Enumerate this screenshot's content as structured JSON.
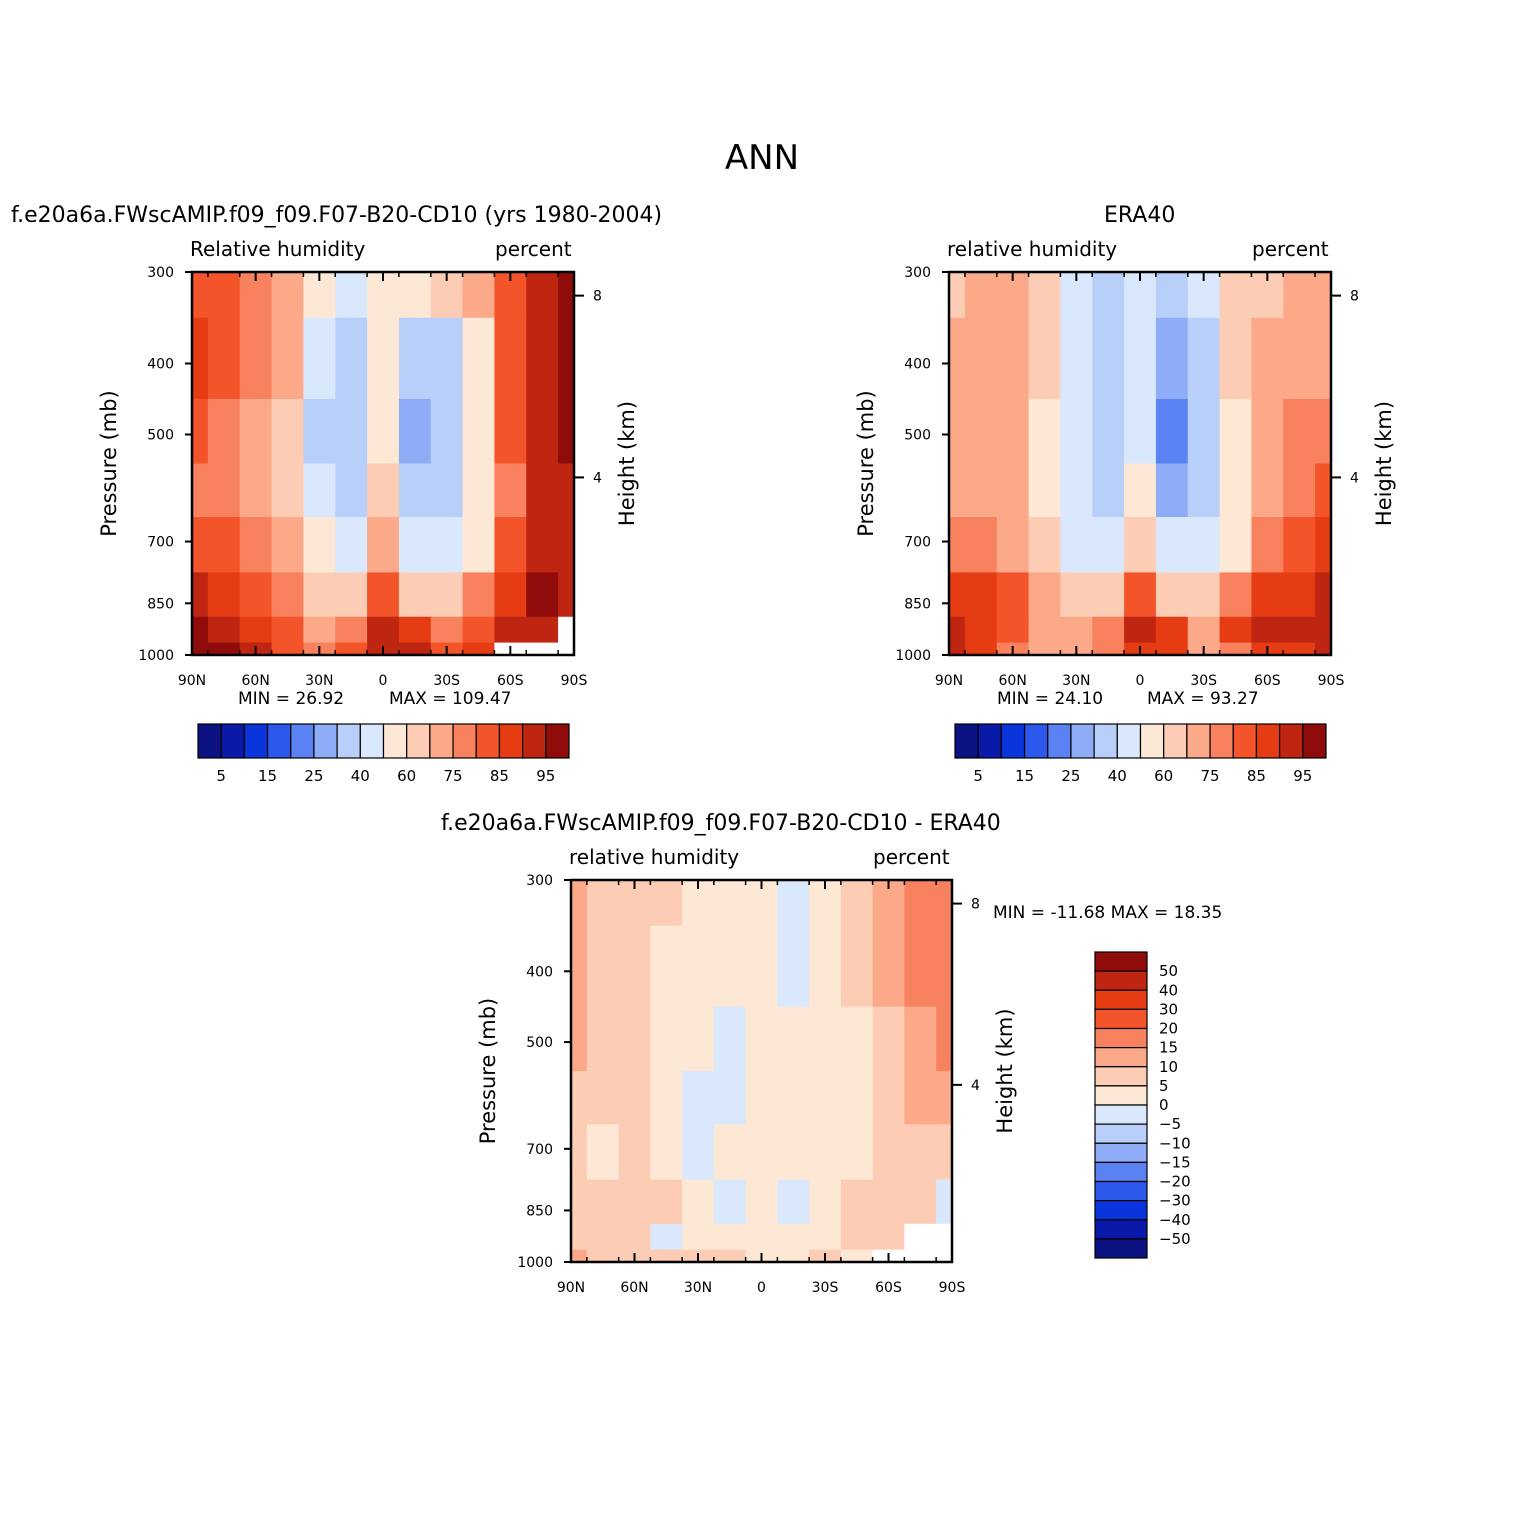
{
  "figure": {
    "title": "ANN"
  },
  "panels": [
    {
      "title": "f.e20a6a.FWscAMIP.f09_f09.F07-B20-CD10 (yrs 1980-2004)",
      "left_label": "Relative humidity",
      "right_label": "percent",
      "ylabel": "Pressure (mb)",
      "ylabel_right": "Height (km)",
      "min_text": "MIN =   26.92",
      "max_text": "MAX =  109.47"
    },
    {
      "title": "ERA40",
      "left_label": "relative humidity",
      "right_label": "percent",
      "ylabel": "Pressure (mb)",
      "ylabel_right": "Height (km)",
      "min_text": "MIN =   24.10",
      "max_text": "MAX =   93.27"
    },
    {
      "title": "f.e20a6a.FWscAMIP.f09_f09.F07-B20-CD10 - ERA40",
      "left_label": "relative humidity",
      "right_label": "percent",
      "ylabel": "Pressure (mb)",
      "ylabel_right": "Height (km)",
      "minmax_text": "MIN = -11.68   MAX =   18.35"
    }
  ],
  "chart_data": [
    {
      "type": "heatmap",
      "title": "f.e20a6a.FWscAMIP.f09_f09.F07-B20-CD10 (yrs 1980-2004)",
      "variable": "Relative humidity",
      "units": "percent",
      "xlabel": "",
      "ylabel": "Pressure (mb)",
      "ylabel_right": "Height (km)",
      "x_ticks": [
        "90N",
        "60N",
        "30N",
        "0",
        "30S",
        "60S",
        "90S"
      ],
      "y_ticks": [
        300,
        400,
        500,
        700,
        850,
        1000
      ],
      "y_ticks_right": [
        8,
        4
      ],
      "y_scale": "log",
      "ylim": [
        1000,
        300
      ],
      "min": 26.92,
      "max": 109.47,
      "legend_levels": [
        5,
        10,
        15,
        20,
        25,
        30,
        40,
        50,
        60,
        65,
        70,
        75,
        80,
        85,
        90,
        95
      ],
      "legend_labels": [
        "5",
        "15",
        "25",
        "40",
        "60",
        "75",
        "85",
        "95"
      ],
      "legend_orientation": "horizontal",
      "lat": [
        90,
        75,
        60,
        45,
        30,
        15,
        0,
        -15,
        -30,
        -45,
        -60,
        -75,
        -90
      ],
      "levels_mb": [
        300,
        400,
        500,
        600,
        700,
        850,
        925,
        1000
      ],
      "values": [
        [
          75,
          75,
          70,
          65,
          55,
          45,
          55,
          50,
          60,
          65,
          75,
          85,
          90
        ],
        [
          80,
          75,
          70,
          65,
          40,
          30,
          50,
          30,
          35,
          55,
          75,
          85,
          90
        ],
        [
          75,
          72,
          68,
          60,
          38,
          30,
          55,
          25,
          30,
          55,
          75,
          85,
          90
        ],
        [
          72,
          70,
          68,
          60,
          40,
          35,
          62,
          30,
          35,
          50,
          72,
          85,
          88
        ],
        [
          78,
          75,
          72,
          65,
          50,
          40,
          65,
          40,
          40,
          55,
          75,
          85,
          85
        ],
        [
          85,
          82,
          78,
          70,
          60,
          60,
          75,
          62,
          60,
          70,
          82,
          90,
          85
        ],
        [
          90,
          88,
          82,
          75,
          65,
          70,
          88,
          80,
          70,
          78,
          85,
          88,
          null
        ],
        [
          98,
          95,
          85,
          75,
          70,
          75,
          88,
          85,
          78,
          80,
          null,
          null,
          null
        ]
      ]
    },
    {
      "type": "heatmap",
      "title": "ERA40",
      "variable": "relative humidity",
      "units": "percent",
      "xlabel": "",
      "ylabel": "Pressure (mb)",
      "ylabel_right": "Height (km)",
      "x_ticks": [
        "90N",
        "60N",
        "30N",
        "0",
        "30S",
        "60S",
        "90S"
      ],
      "y_ticks": [
        300,
        400,
        500,
        700,
        850,
        1000
      ],
      "y_ticks_right": [
        8,
        4
      ],
      "y_scale": "log",
      "ylim": [
        1000,
        300
      ],
      "min": 24.1,
      "max": 93.27,
      "legend_levels": [
        5,
        10,
        15,
        20,
        25,
        30,
        40,
        50,
        60,
        65,
        70,
        75,
        80,
        85,
        90,
        95
      ],
      "legend_labels": [
        "5",
        "15",
        "25",
        "40",
        "60",
        "75",
        "85",
        "95"
      ],
      "legend_orientation": "horizontal",
      "lat": [
        90,
        75,
        60,
        45,
        30,
        15,
        0,
        -15,
        -30,
        -45,
        -60,
        -75,
        -90
      ],
      "levels_mb": [
        300,
        400,
        500,
        600,
        700,
        850,
        925,
        1000
      ],
      "values": [
        [
          60,
          65,
          65,
          60,
          45,
          35,
          45,
          35,
          45,
          60,
          60,
          65,
          65
        ],
        [
          65,
          65,
          65,
          60,
          40,
          30,
          42,
          25,
          35,
          60,
          65,
          65,
          65
        ],
        [
          65,
          65,
          65,
          58,
          40,
          30,
          45,
          20,
          30,
          55,
          65,
          70,
          70
        ],
        [
          65,
          68,
          65,
          58,
          42,
          35,
          55,
          28,
          35,
          55,
          65,
          72,
          75
        ],
        [
          70,
          72,
          68,
          60,
          45,
          40,
          60,
          40,
          40,
          55,
          70,
          78,
          82
        ],
        [
          82,
          80,
          75,
          68,
          60,
          62,
          75,
          62,
          60,
          72,
          80,
          82,
          85
        ],
        [
          85,
          82,
          75,
          68,
          65,
          72,
          85,
          80,
          68,
          80,
          88,
          85,
          85
        ],
        [
          85,
          80,
          72,
          65,
          65,
          70,
          82,
          80,
          65,
          72,
          82,
          80,
          85
        ]
      ]
    },
    {
      "type": "heatmap",
      "title": "f.e20a6a.FWscAMIP.f09_f09.F07-B20-CD10 - ERA40",
      "variable": "relative humidity",
      "units": "percent",
      "xlabel": "",
      "ylabel": "Pressure (mb)",
      "ylabel_right": "Height (km)",
      "x_ticks": [
        "90N",
        "60N",
        "30N",
        "0",
        "30S",
        "60S",
        "90S"
      ],
      "y_ticks": [
        300,
        400,
        500,
        700,
        850,
        1000
      ],
      "y_ticks_right": [
        8,
        4
      ],
      "y_scale": "log",
      "ylim": [
        1000,
        300
      ],
      "min": -11.68,
      "max": 18.35,
      "legend_levels": [
        -50,
        -40,
        -30,
        -20,
        -15,
        -10,
        -5,
        0,
        5,
        10,
        15,
        20,
        30,
        40,
        50
      ],
      "legend_labels": [
        "50",
        "40",
        "30",
        "20",
        "15",
        "10",
        "5",
        "0",
        "−5",
        "−10",
        "−15",
        "−20",
        "−30",
        "−40",
        "−50"
      ],
      "legend_orientation": "vertical",
      "lat": [
        90,
        75,
        60,
        45,
        30,
        15,
        0,
        -15,
        -30,
        -45,
        -60,
        -75,
        -90
      ],
      "levels_mb": [
        300,
        400,
        500,
        600,
        700,
        850,
        925,
        1000
      ],
      "values": [
        [
          12,
          8,
          6,
          6,
          4,
          4,
          4,
          -3,
          4,
          6,
          12,
          15,
          15
        ],
        [
          12,
          8,
          6,
          4,
          3,
          2,
          3,
          -3,
          4,
          6,
          10,
          15,
          15
        ],
        [
          10,
          8,
          6,
          3,
          2,
          -2,
          3,
          3,
          3,
          3,
          8,
          12,
          15
        ],
        [
          7,
          6,
          5,
          2,
          -2,
          -3,
          3,
          2,
          2,
          2,
          7,
          10,
          12
        ],
        [
          7,
          4,
          6,
          3,
          -2,
          3,
          2,
          3,
          3,
          3,
          6,
          7,
          6
        ],
        [
          6,
          6,
          7,
          5,
          3,
          -3,
          2,
          -3,
          3,
          5,
          8,
          6,
          -3
        ],
        [
          7,
          6,
          6,
          -3,
          3,
          4,
          3,
          2,
          3,
          6,
          6,
          null,
          null
        ],
        [
          10,
          8,
          7,
          5,
          6,
          5,
          3,
          4,
          5,
          3,
          null,
          null,
          null
        ]
      ]
    }
  ],
  "colors": {
    "humidity_scale": [
      "#0c1281",
      "#0a1aa8",
      "#0b35dc",
      "#2c58ec",
      "#5b82f2",
      "#8fadf7",
      "#b8cffa",
      "#d9e8fc",
      "#fde8d6",
      "#fdccb4",
      "#fca98a",
      "#f8825e",
      "#f4542a",
      "#e53c14",
      "#be2612",
      "#8f0c0a"
    ],
    "diff_scale": [
      "#0c1281",
      "#0a1aa8",
      "#0b35dc",
      "#2c58ec",
      "#5b82f2",
      "#8fadf7",
      "#b8cffa",
      "#d9e8fc",
      "#fde8d6",
      "#fdccb4",
      "#fca98a",
      "#f8825e",
      "#f4542a",
      "#e53c14",
      "#be2612",
      "#8f0c0a"
    ]
  }
}
